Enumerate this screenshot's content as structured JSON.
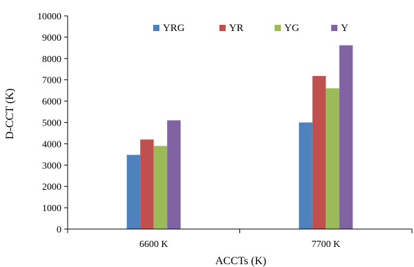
{
  "chart_data": {
    "type": "bar",
    "categories": [
      "6600 K",
      "7700 K"
    ],
    "series": [
      {
        "name": "YRG",
        "values": [
          3480,
          5000
        ],
        "color": "#4F81BD"
      },
      {
        "name": "YR",
        "values": [
          4200,
          7180
        ],
        "color": "#C0504D"
      },
      {
        "name": "YG",
        "values": [
          3900,
          6600
        ],
        "color": "#9BBB59"
      },
      {
        "name": "Y",
        "values": [
          5100,
          8620
        ],
        "color": "#8064A2"
      }
    ],
    "xlabel": "ACCTs (K)",
    "ylabel": "D-CCT (K)",
    "ylim": [
      0,
      10000
    ],
    "yticks": [
      0,
      1000,
      2000,
      3000,
      4000,
      5000,
      6000,
      7000,
      8000,
      9000,
      10000
    ],
    "grid": false,
    "legend_position": "top"
  }
}
